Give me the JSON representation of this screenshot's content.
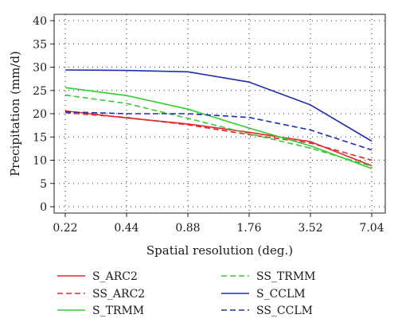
{
  "chart_data": {
    "type": "line",
    "xlabel": "Spatial resolution (deg.)",
    "ylabel": "Precipitation (mm/d)",
    "categories": [
      "0.22",
      "0.44",
      "0.88",
      "1.76",
      "3.52",
      "7.04"
    ],
    "ylim": [
      0,
      40
    ],
    "yticks": [
      0,
      5,
      10,
      15,
      20,
      25,
      30,
      35,
      40
    ],
    "grid": true,
    "legend_position": "bottom",
    "series": [
      {
        "name": "S_ARC2",
        "color": "#e8262a",
        "dash": "solid",
        "values": [
          20.6,
          19.1,
          17.8,
          16.0,
          14.0,
          8.8
        ]
      },
      {
        "name": "SS_ARC2",
        "color": "#e8262a",
        "dash": "dashed",
        "values": [
          20.2,
          19.2,
          17.6,
          15.5,
          13.7,
          10.0
        ]
      },
      {
        "name": "S_TRMM",
        "color": "#33cc33",
        "dash": "solid",
        "values": [
          25.6,
          23.9,
          21.0,
          16.9,
          13.1,
          8.2
        ]
      },
      {
        "name": "SS_TRMM",
        "color": "#33cc33",
        "dash": "dashed",
        "values": [
          24.0,
          22.2,
          19.0,
          15.7,
          12.6,
          8.7
        ]
      },
      {
        "name": "S_CCLM",
        "color": "#1f2db0",
        "dash": "solid",
        "values": [
          29.4,
          29.3,
          29.0,
          26.8,
          21.9,
          14.1
        ]
      },
      {
        "name": "SS_CCLM",
        "color": "#1f2db0",
        "dash": "dashed",
        "values": [
          20.4,
          20.0,
          20.0,
          19.2,
          16.5,
          12.2
        ]
      }
    ]
  }
}
